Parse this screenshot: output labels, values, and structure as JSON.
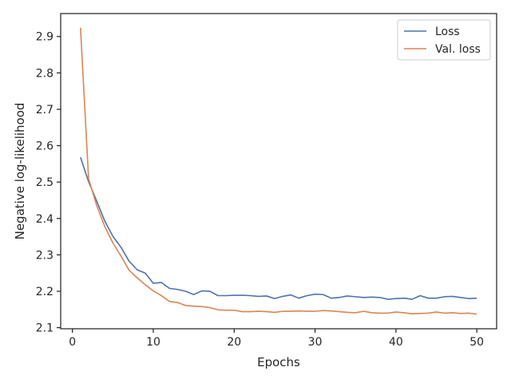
{
  "chart_data": {
    "type": "line",
    "title": "",
    "xlabel": "Epochs",
    "ylabel": "Negative log-likelihood",
    "xlim": [
      -1.45,
      52.45
    ],
    "ylim": [
      2.097,
      2.963
    ],
    "xticks": [
      0,
      10,
      20,
      30,
      40,
      50
    ],
    "yticks": [
      2.1,
      2.2,
      2.3,
      2.4,
      2.5,
      2.6,
      2.7,
      2.8,
      2.9
    ],
    "ytick_labels": [
      "2.1",
      "2.2",
      "2.3",
      "2.4",
      "2.5",
      "2.6",
      "2.7",
      "2.8",
      "2.9"
    ],
    "grid": false,
    "legend": {
      "position": "top-right"
    },
    "x": [
      1,
      2,
      3,
      4,
      5,
      6,
      7,
      8,
      9,
      10,
      11,
      12,
      13,
      14,
      15,
      16,
      17,
      18,
      19,
      20,
      21,
      22,
      23,
      24,
      25,
      26,
      27,
      28,
      29,
      30,
      31,
      32,
      33,
      34,
      35,
      36,
      37,
      38,
      39,
      40,
      41,
      42,
      43,
      44,
      45,
      46,
      47,
      48,
      49,
      50
    ],
    "series": [
      {
        "name": "Loss",
        "color": "#4c72b0",
        "values": [
          2.568,
          2.501,
          2.448,
          2.393,
          2.351,
          2.321,
          2.283,
          2.259,
          2.25,
          2.222,
          2.224,
          2.208,
          2.205,
          2.2,
          2.191,
          2.201,
          2.2,
          2.188,
          2.188,
          2.189,
          2.189,
          2.188,
          2.186,
          2.187,
          2.18,
          2.186,
          2.19,
          2.181,
          2.188,
          2.192,
          2.191,
          2.181,
          2.183,
          2.187,
          2.185,
          2.183,
          2.184,
          2.183,
          2.178,
          2.18,
          2.181,
          2.178,
          2.188,
          2.181,
          2.181,
          2.185,
          2.186,
          2.183,
          2.18,
          2.181
        ]
      },
      {
        "name": "Val. loss",
        "color": "#dd8452",
        "values": [
          2.924,
          2.509,
          2.436,
          2.378,
          2.333,
          2.297,
          2.258,
          2.237,
          2.218,
          2.201,
          2.188,
          2.172,
          2.169,
          2.161,
          2.159,
          2.158,
          2.155,
          2.149,
          2.148,
          2.148,
          2.144,
          2.144,
          2.145,
          2.144,
          2.142,
          2.145,
          2.145,
          2.146,
          2.145,
          2.145,
          2.147,
          2.146,
          2.144,
          2.142,
          2.141,
          2.145,
          2.141,
          2.14,
          2.14,
          2.143,
          2.141,
          2.138,
          2.139,
          2.14,
          2.143,
          2.14,
          2.141,
          2.139,
          2.14,
          2.137
        ]
      }
    ]
  }
}
